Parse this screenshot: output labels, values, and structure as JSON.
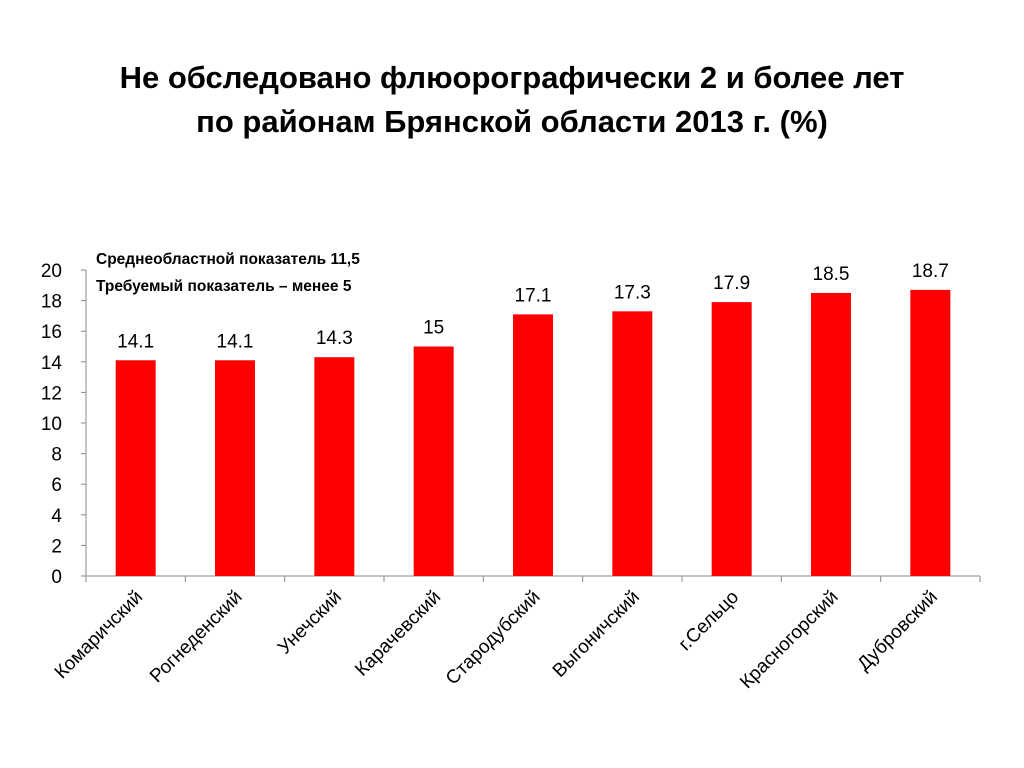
{
  "title_lines": [
    "Не обследовано флюорографически 2 и более лет",
    "по районам Брянской области 2013 г. (%)"
  ],
  "notes": [
    "Среднеобластной показатель 11,5",
    "Требуемый показатель – менее 5"
  ],
  "colors": {
    "bar": "#ff0000",
    "axis": "#888888"
  },
  "chart_data": {
    "type": "bar",
    "title": "Не обследовано флюорографически 2 и более лет по районам Брянской области 2013 г. (%)",
    "categories": [
      "Комаричский",
      "Рогнеденский",
      "Унечский",
      "Карачевский",
      "Стародубский",
      "Выгоничский",
      "г.Сельцо",
      "Красногорский",
      "Дубровский"
    ],
    "values": [
      14.1,
      14.1,
      14.3,
      15,
      17.1,
      17.3,
      17.9,
      18.5,
      18.7
    ],
    "data_labels": [
      "14.1",
      "14.1",
      "14.3",
      "15",
      "17.1",
      "17.3",
      "17.9",
      "18.5",
      "18.7"
    ],
    "ylim": [
      0,
      20
    ],
    "yticks": [
      0,
      2,
      4,
      6,
      8,
      10,
      12,
      14,
      16,
      18,
      20
    ],
    "grid": false,
    "legend": "none"
  }
}
